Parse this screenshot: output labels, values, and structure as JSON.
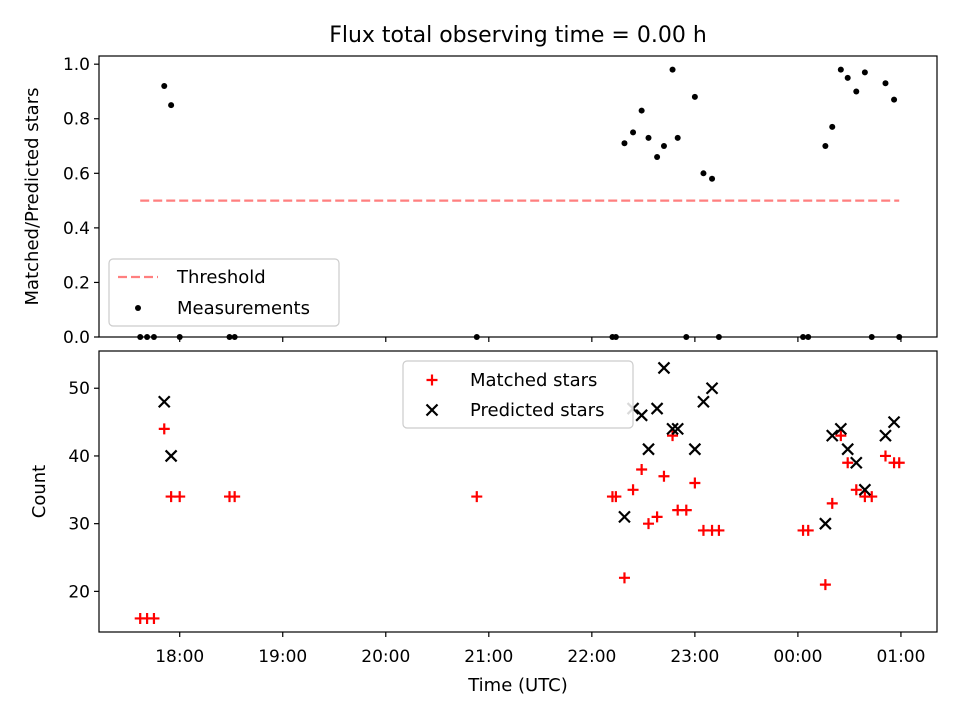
{
  "figure": {
    "title": "Flux total observing time = 0.00 h",
    "xlabel": "Time (UTC)"
  },
  "chart_data": [
    {
      "type": "scatter",
      "ylabel": "Matched/Predicted stars",
      "ylim": [
        0.0,
        1.03
      ],
      "yticks": [
        0.0,
        0.2,
        0.4,
        0.6,
        0.8,
        1.0
      ],
      "ytick_labels": [
        "0.0",
        "0.2",
        "0.4",
        "0.6",
        "0.8",
        "1.0"
      ],
      "xlim": [
        "17:13",
        "01:21"
      ],
      "xticks": [
        "18:00",
        "19:00",
        "20:00",
        "21:00",
        "22:00",
        "23:00",
        "00:00",
        "01:00"
      ],
      "legend": {
        "placement": "lower-left",
        "entries": [
          "Threshold",
          "Measurements"
        ]
      },
      "grid": false,
      "series": [
        {
          "name": "Threshold",
          "style": "dashed-line",
          "color": "#ff7f7f",
          "x": [
            "17:37",
            "00:59"
          ],
          "y": [
            0.5,
            0.5
          ]
        },
        {
          "name": "Measurements",
          "style": "dot",
          "color": "#000000",
          "x": [
            "17:37",
            "17:41",
            "17:45",
            "17:51",
            "17:55",
            "18:00",
            "18:29",
            "18:32",
            "20:53",
            "22:12",
            "22:14",
            "22:19",
            "22:24",
            "22:29",
            "22:33",
            "22:38",
            "22:42",
            "22:47",
            "22:50",
            "22:55",
            "23:00",
            "23:05",
            "23:10",
            "23:14",
            "00:03",
            "00:06",
            "00:16",
            "00:20",
            "00:25",
            "00:29",
            "00:34",
            "00:39",
            "00:43",
            "00:51",
            "00:56",
            "00:59"
          ],
          "y": [
            0.0,
            0.0,
            0.0,
            0.92,
            0.85,
            0.0,
            0.0,
            0.0,
            0.0,
            0.0,
            0.0,
            0.71,
            0.75,
            0.83,
            0.73,
            0.66,
            0.7,
            0.98,
            0.73,
            0.0,
            0.88,
            0.6,
            0.58,
            0.0,
            0.0,
            0.0,
            0.7,
            0.77,
            0.98,
            0.95,
            0.9,
            0.97,
            0.0,
            0.93,
            0.87,
            0.0
          ]
        }
      ]
    },
    {
      "type": "scatter",
      "ylabel": "Count",
      "ylim": [
        14.0,
        55.5
      ],
      "yticks": [
        20,
        30,
        40,
        50
      ],
      "ytick_labels": [
        "20",
        "30",
        "40",
        "50"
      ],
      "xlim": [
        "17:13",
        "01:21"
      ],
      "xticks": [
        "18:00",
        "19:00",
        "20:00",
        "21:00",
        "22:00",
        "23:00",
        "00:00",
        "01:00"
      ],
      "xtick_labels": [
        "18:00",
        "19:00",
        "20:00",
        "21:00",
        "22:00",
        "23:00",
        "00:00",
        "01:00"
      ],
      "legend": {
        "placement": "upper-center",
        "entries": [
          "Matched stars",
          "Predicted stars"
        ]
      },
      "grid": false,
      "series": [
        {
          "name": "Matched stars",
          "marker": "plus",
          "color": "#ff0000",
          "x": [
            "17:37",
            "17:41",
            "17:45",
            "17:51",
            "17:55",
            "18:00",
            "18:29",
            "18:32",
            "20:53",
            "22:12",
            "22:14",
            "22:19",
            "22:24",
            "22:29",
            "22:33",
            "22:38",
            "22:42",
            "22:47",
            "22:50",
            "22:55",
            "23:00",
            "23:05",
            "23:10",
            "23:14",
            "00:03",
            "00:06",
            "00:16",
            "00:20",
            "00:25",
            "00:29",
            "00:34",
            "00:39",
            "00:43",
            "00:51",
            "00:56",
            "00:59"
          ],
          "y": [
            16,
            16,
            16,
            44,
            34,
            34,
            34,
            34,
            34,
            34,
            34,
            22,
            35,
            38,
            30,
            31,
            37,
            43,
            32,
            32,
            36,
            29,
            29,
            29,
            29,
            29,
            21,
            33,
            43,
            39,
            35,
            34,
            34,
            40,
            39,
            39
          ]
        },
        {
          "name": "Predicted stars",
          "marker": "x",
          "color": "#000000",
          "x": [
            "17:51",
            "17:55",
            "22:19",
            "22:24",
            "22:29",
            "22:33",
            "22:38",
            "22:42",
            "22:47",
            "22:50",
            "23:00",
            "23:05",
            "23:10",
            "00:16",
            "00:20",
            "00:25",
            "00:29",
            "00:34",
            "00:39",
            "00:51",
            "00:56"
          ],
          "y": [
            48,
            40,
            31,
            47,
            46,
            41,
            47,
            53,
            44,
            44,
            41,
            48,
            50,
            30,
            43,
            44,
            41,
            39,
            35,
            43,
            45
          ]
        }
      ]
    }
  ]
}
